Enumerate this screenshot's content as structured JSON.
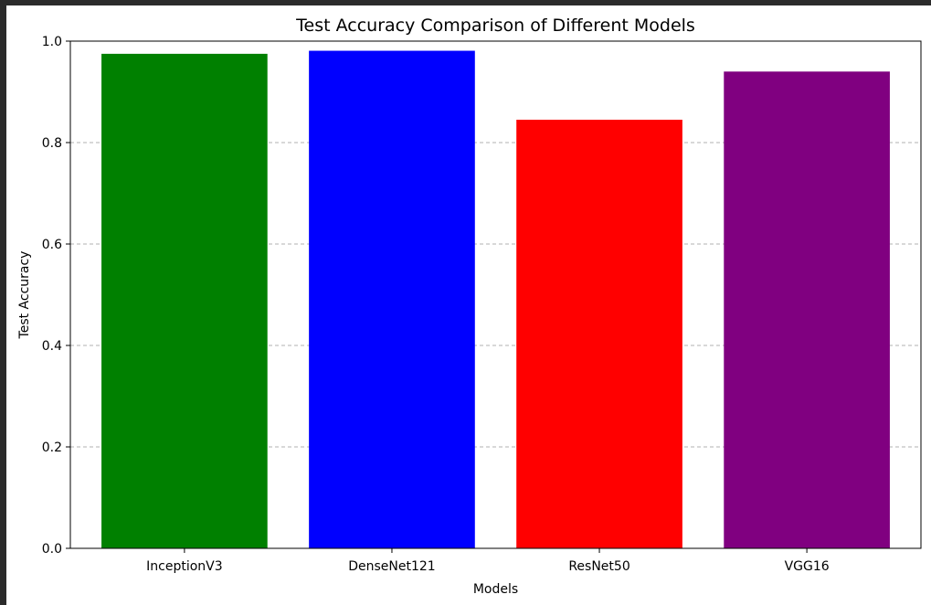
{
  "chart_data": {
    "type": "bar",
    "title": "Test Accuracy Comparison of Different Models",
    "xlabel": "Models",
    "ylabel": "Test Accuracy",
    "categories": [
      "InceptionV3",
      "DenseNet121",
      "ResNet50",
      "VGG16"
    ],
    "values": [
      0.975,
      0.981,
      0.845,
      0.94
    ],
    "colors": [
      "#008000",
      "#0000ff",
      "#ff0000",
      "#800080"
    ],
    "ylim": [
      0,
      1.0
    ],
    "yticks": [
      "0.0",
      "0.2",
      "0.4",
      "0.6",
      "0.8",
      "1.0"
    ],
    "ytick_values": [
      0,
      0.2,
      0.4,
      0.6,
      0.8,
      1.0
    ],
    "grid": "y-dashed",
    "legend": "none"
  }
}
